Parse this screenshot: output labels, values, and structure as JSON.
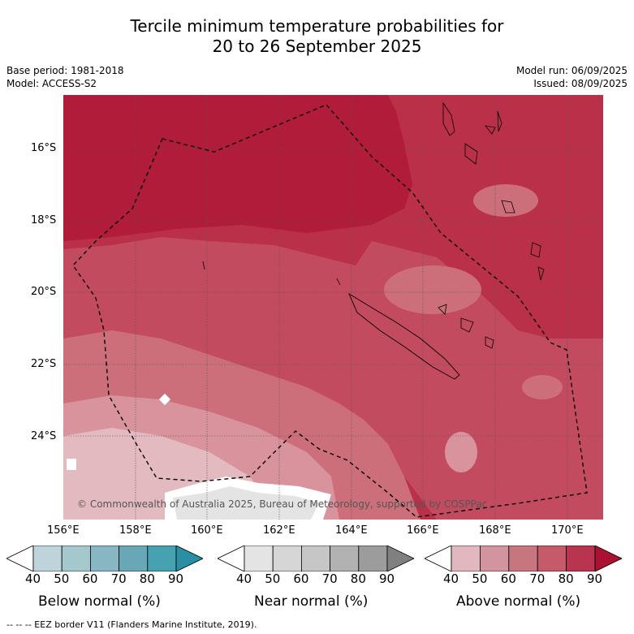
{
  "title_line1": "Tercile minimum temperature probabilities for",
  "title_line2": "20 to 26 September 2025",
  "meta_left": [
    "Base period: 1981-2018",
    "Model: ACCESS-S2"
  ],
  "meta_right": [
    "Model run: 06/09/2025",
    "Issued: 08/09/2025"
  ],
  "y_ticks": [
    "16°S",
    "18°S",
    "20°S",
    "22°S",
    "24°S"
  ],
  "x_ticks": [
    "156°E",
    "158°E",
    "160°E",
    "162°E",
    "164°E",
    "166°E",
    "168°E",
    "170°E"
  ],
  "copyright": "© Commonwealth of Australia 2025, Bureau of Meteorology, supported by COSPPac",
  "colorbars": [
    {
      "label": "Below normal (%)",
      "ticks": [
        "40",
        "50",
        "60",
        "70",
        "80",
        "90"
      ],
      "colors": [
        "#ffffff",
        "#bfd4da",
        "#a4c8ce",
        "#86b7c3",
        "#68a8b6",
        "#46a1b1",
        "#2a8fa3"
      ]
    },
    {
      "label": "Near normal (%)",
      "ticks": [
        "40",
        "50",
        "60",
        "70",
        "80",
        "90"
      ],
      "colors": [
        "#ffffff",
        "#e4e4e4",
        "#d6d6d6",
        "#c6c6c6",
        "#b2b2b2",
        "#9c9c9c",
        "#808080"
      ]
    },
    {
      "label": "Above normal (%)",
      "ticks": [
        "40",
        "50",
        "60",
        "70",
        "80",
        "90"
      ],
      "colors": [
        "#ffffff",
        "#e1b8c0",
        "#d2949e",
        "#c77680",
        "#c45a6a",
        "#b9344f",
        "#aa1232"
      ]
    }
  ],
  "footer": "-- -- -- EEZ border V11 (Flanders Marine Institute, 2019)."
}
